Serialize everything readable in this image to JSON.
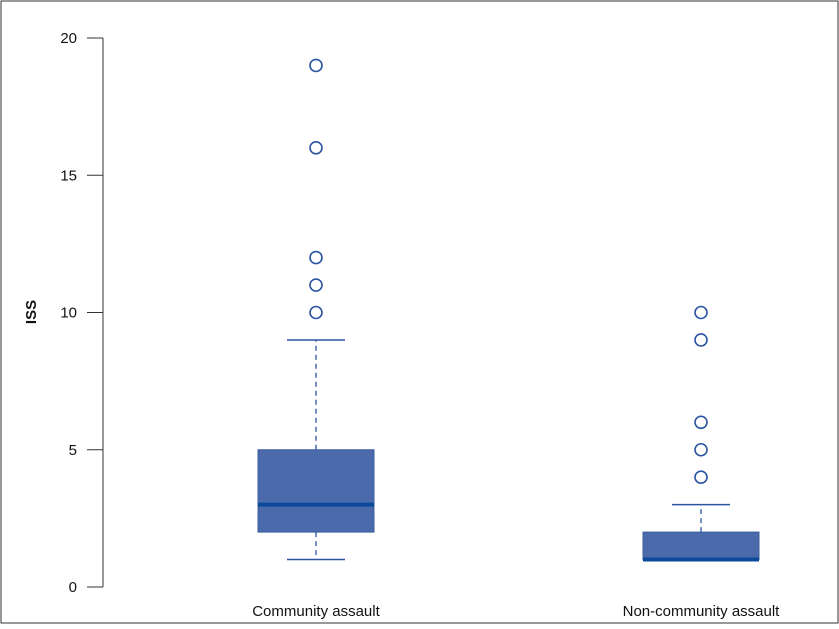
{
  "chart_data": {
    "type": "boxplot",
    "title": "",
    "xlabel": "",
    "ylabel": "ISS",
    "ylim": [
      0,
      20
    ],
    "yticks": [
      0,
      5,
      10,
      15,
      20
    ],
    "yticks_labels": [
      "0",
      "5",
      "10",
      "15",
      "20"
    ],
    "grid": false,
    "categories": [
      "Community assault",
      "Non-community assault"
    ],
    "boxes": [
      {
        "category": "Community assault",
        "whisker_low": 1,
        "q1": 2,
        "median": 3,
        "q3": 5,
        "whisker_high": 9,
        "outliers": [
          10,
          11,
          12,
          16,
          19
        ]
      },
      {
        "category": "Non-community assault",
        "whisker_low": 1,
        "q1": 1,
        "median": 1,
        "q3": 2,
        "whisker_high": 3,
        "outliers": [
          4,
          5,
          6,
          9,
          10
        ]
      }
    ],
    "colors": {
      "box_fill": "#4a6aab",
      "median": "#0b4a9a",
      "whisker": "#2b55a3",
      "outlier": "#2b55a3",
      "axis": "#333333"
    }
  }
}
